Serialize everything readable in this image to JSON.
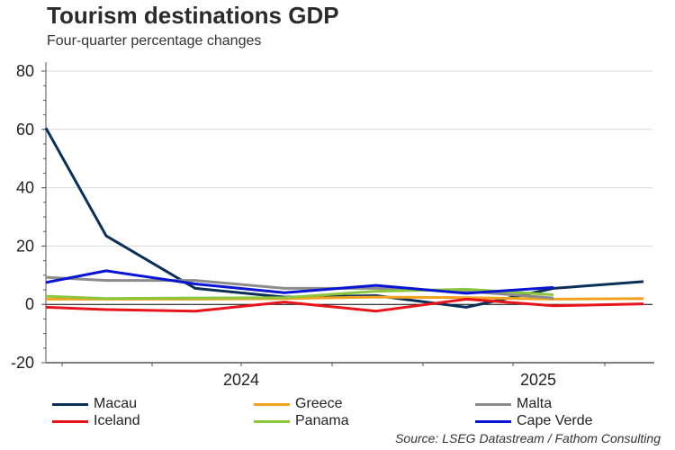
{
  "chart_data": {
    "type": "line",
    "title": "Tourism destinations GDP",
    "subtitle": "Four-quarter percentage changes",
    "xlabel": "",
    "ylabel": "",
    "ylim": [
      -20,
      80
    ],
    "yticks": [
      80,
      60,
      40,
      20,
      0,
      -20
    ],
    "ytick_labels": [
      "80",
      "60",
      "40",
      "20",
      "0",
      "-20"
    ],
    "xtick_labels": [
      "2024",
      "2025"
    ],
    "grid": true,
    "legend_position": "bottom",
    "x": [
      0,
      1,
      2,
      3,
      4,
      5,
      6,
      7
    ],
    "series": [
      {
        "name": "Macau",
        "color": "#0b2f57",
        "values": [
          60.5,
          23.5,
          5.5,
          2.5,
          3.0,
          -1.0,
          5.5,
          7.8
        ]
      },
      {
        "name": "Greece",
        "color": "#f2a21e",
        "values": [
          1.8,
          1.8,
          1.8,
          2.0,
          2.5,
          2.3,
          1.8,
          2.0
        ]
      },
      {
        "name": "Malta",
        "color": "#8c8c8c",
        "values": [
          9.3,
          8.2,
          8.2,
          5.5,
          5.5,
          4.5,
          2.2,
          null
        ]
      },
      {
        "name": "Iceland",
        "color": "#e8141b",
        "values": [
          -1.0,
          -1.8,
          -2.3,
          0.8,
          -2.3,
          1.8,
          -0.5,
          0.2
        ]
      },
      {
        "name": "Panama",
        "color": "#8cc63f",
        "values": [
          2.8,
          2.0,
          2.2,
          2.3,
          4.5,
          5.2,
          3.3,
          null
        ]
      },
      {
        "name": "Cape Verde",
        "color": "#0a14d4",
        "values": [
          7.5,
          11.5,
          7.0,
          4.0,
          6.5,
          3.8,
          5.8,
          null
        ]
      }
    ]
  },
  "source": "Source: LSEG Datastream / Fathom Consulting"
}
